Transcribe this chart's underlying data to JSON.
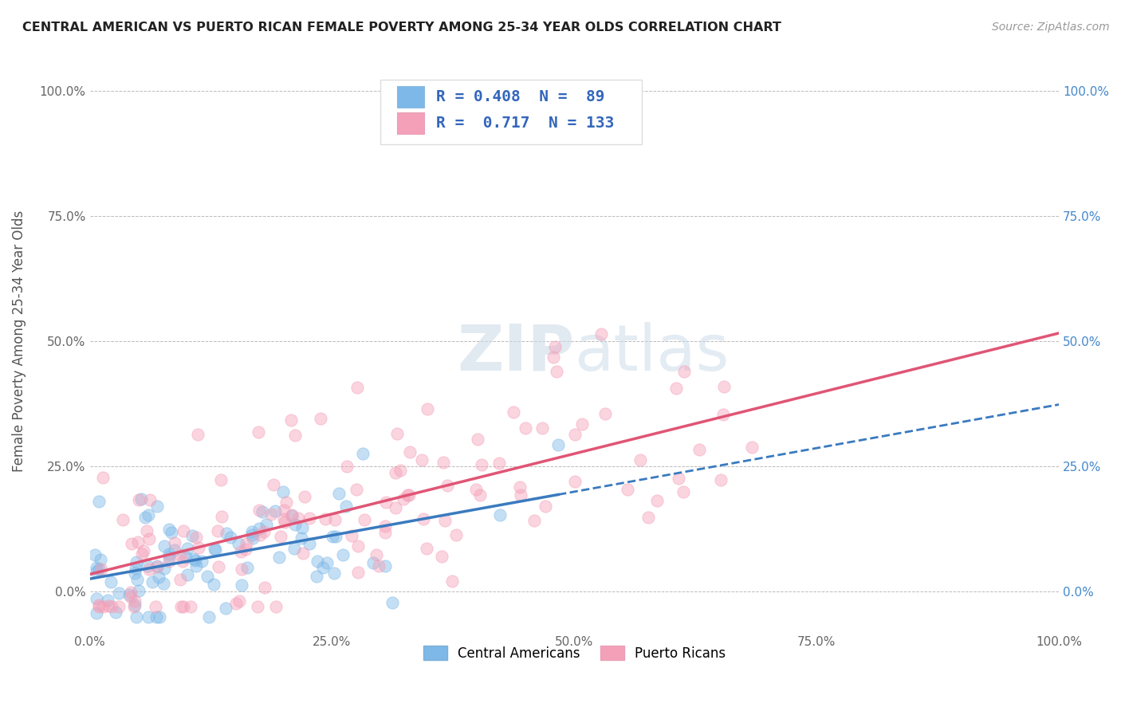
{
  "title": "CENTRAL AMERICAN VS PUERTO RICAN FEMALE POVERTY AMONG 25-34 YEAR OLDS CORRELATION CHART",
  "source": "Source: ZipAtlas.com",
  "ylabel": "Female Poverty Among 25-34 Year Olds",
  "xlim": [
    0.0,
    1.0
  ],
  "ylim": [
    -0.08,
    1.08
  ],
  "ca_color": "#7db8e8",
  "pr_color": "#f4a0b8",
  "ca_line_color": "#3a7abf",
  "pr_line_color": "#e05575",
  "ca_R": 0.408,
  "ca_N": 89,
  "pr_R": 0.717,
  "pr_N": 133,
  "background_color": "#ffffff",
  "grid_color": "#bbbbbb",
  "legend_label_ca": "Central Americans",
  "legend_label_pr": "Puerto Ricans",
  "right_tick_color": "#4488cc",
  "seed": 7
}
